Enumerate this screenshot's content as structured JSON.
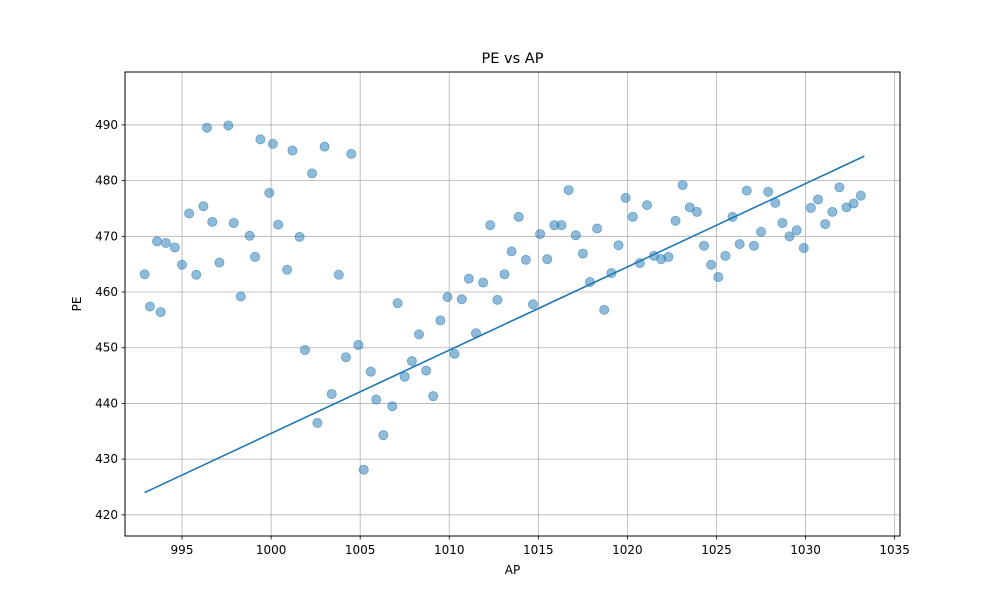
{
  "chart_data": {
    "type": "scatter",
    "title": "PE vs AP",
    "xlabel": "AP",
    "ylabel": "PE",
    "xlim": [
      991.8,
      1035.3
    ],
    "ylim": [
      416.2,
      499.5
    ],
    "x_ticks": [
      995,
      1000,
      1005,
      1010,
      1015,
      1020,
      1025,
      1030,
      1035
    ],
    "y_ticks": [
      420,
      430,
      440,
      450,
      460,
      470,
      480,
      490
    ],
    "grid": true,
    "legend": "none",
    "colors": {
      "points": "#1f77b4",
      "line": "#1f77b4",
      "grid": "#b0b0b0"
    },
    "series": [
      {
        "kind": "scatter",
        "x": [
          992.9,
          993.2,
          993.6,
          993.8,
          994.1,
          994.6,
          995.0,
          995.4,
          995.8,
          996.2,
          996.4,
          996.7,
          997.1,
          997.6,
          997.9,
          998.3,
          998.8,
          999.1,
          999.4,
          999.9,
          1000.1,
          1000.4,
          1000.9,
          1001.2,
          1001.6,
          1001.9,
          1002.3,
          1002.6,
          1003.0,
          1003.4,
          1003.8,
          1004.2,
          1004.5,
          1004.9,
          1005.2,
          1005.6,
          1005.9,
          1006.3,
          1006.8,
          1007.1,
          1007.5,
          1007.9,
          1008.3,
          1008.7,
          1009.1,
          1009.5,
          1009.9,
          1010.3,
          1010.7,
          1011.1,
          1011.5,
          1011.9,
          1012.3,
          1012.7,
          1013.1,
          1013.5,
          1013.9,
          1014.3,
          1014.7,
          1015.1,
          1015.5,
          1015.9,
          1016.3,
          1016.7,
          1017.1,
          1017.5,
          1017.9,
          1018.3,
          1018.7,
          1019.1,
          1019.5,
          1019.9,
          1020.3,
          1020.7,
          1021.1,
          1021.5,
          1021.9,
          1022.3,
          1022.7,
          1023.1,
          1023.5,
          1023.9,
          1024.3,
          1024.7,
          1025.1,
          1025.5,
          1025.9,
          1026.3,
          1026.7,
          1027.1,
          1027.5,
          1027.9,
          1028.3,
          1028.7,
          1029.1,
          1029.5,
          1029.9,
          1030.3,
          1030.7,
          1031.1,
          1031.5,
          1031.9,
          1032.3,
          1032.7,
          1033.1
        ],
        "y": [
          463.2,
          457.4,
          469.1,
          456.4,
          468.8,
          468.0,
          464.9,
          474.1,
          463.1,
          475.4,
          489.5,
          472.6,
          465.3,
          489.9,
          472.4,
          459.2,
          470.1,
          466.3,
          487.4,
          477.8,
          486.6,
          472.1,
          464.0,
          485.4,
          469.9,
          449.6,
          481.3,
          436.5,
          486.1,
          441.7,
          463.1,
          448.3,
          484.8,
          450.5,
          428.1,
          445.7,
          440.7,
          434.3,
          439.5,
          458.0,
          444.8,
          447.6,
          452.4,
          445.9,
          441.3,
          454.9,
          459.1,
          448.9,
          458.7,
          462.4,
          452.6,
          461.7,
          472.0,
          458.6,
          463.2,
          467.3,
          473.5,
          465.8,
          457.8,
          470.4,
          465.9,
          472.0,
          472.0,
          478.3,
          470.2,
          466.9,
          461.8,
          471.4,
          456.8,
          463.4,
          468.4,
          476.9,
          473.5,
          465.2,
          475.6,
          466.5,
          465.9,
          466.3,
          472.8,
          479.2,
          475.2,
          474.4,
          468.3,
          464.9,
          462.7,
          466.5,
          473.5,
          468.6,
          478.2,
          468.3,
          470.8,
          478.0,
          476.0,
          472.4,
          470.0,
          471.1,
          467.9,
          475.1,
          476.6,
          472.2,
          474.4,
          478.8,
          475.2,
          475.9,
          477.3
        ]
      },
      {
        "kind": "line",
        "name": "",
        "x": [
          992.9,
          1033.3
        ],
        "y": [
          424.0,
          484.4
        ]
      }
    ]
  }
}
